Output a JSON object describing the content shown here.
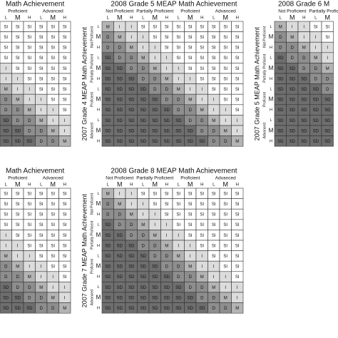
{
  "levels": [
    "L",
    "M",
    "H"
  ],
  "shades": {
    "SI": "#ffffff",
    "I": "#dcdcdc",
    "M": "#b4b4b4",
    "D": "#8e8e8e",
    "SD": "#6e6e6e"
  },
  "panels": [
    {
      "title": "Math Achievement",
      "col_groups": [
        "Proficient",
        "Advanced"
      ],
      "cells": [
        [
          "SI",
          "SI",
          "SI",
          "SI",
          "SI",
          "SI"
        ],
        [
          "SI",
          "SI",
          "SI",
          "SI",
          "SI",
          "SI"
        ],
        [
          "SI",
          "SI",
          "SI",
          "SI",
          "SI",
          "SI"
        ],
        [
          "SI",
          "SI",
          "SI",
          "SI",
          "SI",
          "SI"
        ],
        [
          "I",
          "SI",
          "SI",
          "SI",
          "SI",
          "SI"
        ],
        [
          "I",
          "I",
          "SI",
          "SI",
          "SI",
          "SI"
        ],
        [
          "M",
          "I",
          "I",
          "SI",
          "SI",
          "SI"
        ],
        [
          "D",
          "M",
          "I",
          "I",
          "SI",
          "SI"
        ],
        [
          "D",
          "D",
          "M",
          "I",
          "I",
          "SI"
        ],
        [
          "SD",
          "D",
          "D",
          "M",
          "I",
          "I"
        ],
        [
          "SD",
          "SD",
          "D",
          "D",
          "M",
          "I"
        ],
        [
          "SD",
          "SD",
          "SD",
          "D",
          "D",
          "M"
        ]
      ]
    },
    {
      "title": "2008 Grade 5 MEAP Math Achievement",
      "col_groups": [
        "Not Proficient",
        "Partially Proficient",
        "Proficient",
        "Advanced"
      ],
      "row_title": "2007 Grade 4 MEAP Math Achievement",
      "row_groups": [
        "Not Proficient",
        "Partially Proficient",
        "Proficient",
        "Advanced"
      ],
      "cells": [
        [
          "M",
          "I",
          "I",
          "SI",
          "SI",
          "SI",
          "SI",
          "SI",
          "SI",
          "SI",
          "SI",
          "SI"
        ],
        [
          "D",
          "M",
          "I",
          "I",
          "SI",
          "SI",
          "SI",
          "SI",
          "SI",
          "SI",
          "SI",
          "SI"
        ],
        [
          "D",
          "D",
          "M",
          "I",
          "I",
          "SI",
          "SI",
          "SI",
          "SI",
          "SI",
          "SI",
          "SI"
        ],
        [
          "SD",
          "D",
          "D",
          "M",
          "I",
          "I",
          "SI",
          "SI",
          "SI",
          "SI",
          "SI",
          "SI"
        ],
        [
          "SD",
          "SD",
          "D",
          "D",
          "M",
          "I",
          "I",
          "SI",
          "SI",
          "SI",
          "SI",
          "SI"
        ],
        [
          "SD",
          "SD",
          "SD",
          "D",
          "D",
          "M",
          "I",
          "I",
          "SI",
          "SI",
          "SI",
          "SI"
        ],
        [
          "SD",
          "SD",
          "SD",
          "SD",
          "D",
          "D",
          "M",
          "I",
          "I",
          "SI",
          "SI",
          "SI"
        ],
        [
          "SD",
          "SD",
          "SD",
          "SD",
          "SD",
          "D",
          "D",
          "M",
          "I",
          "I",
          "SI",
          "SI"
        ],
        [
          "SD",
          "SD",
          "SD",
          "SD",
          "SD",
          "SD",
          "D",
          "D",
          "M",
          "I",
          "I",
          "SI"
        ],
        [
          "SD",
          "SD",
          "SD",
          "SD",
          "SD",
          "SD",
          "SD",
          "D",
          "D",
          "M",
          "I",
          "I"
        ],
        [
          "SD",
          "SD",
          "SD",
          "SD",
          "SD",
          "SD",
          "SD",
          "SD",
          "D",
          "D",
          "M",
          "I"
        ],
        [
          "SD",
          "SD",
          "SD",
          "SD",
          "SD",
          "SD",
          "SD",
          "SD",
          "SD",
          "D",
          "D",
          "M"
        ]
      ]
    },
    {
      "title": "2008 Grade 6 M",
      "col_groups": [
        "Not Proficient",
        "Partially Proficient"
      ],
      "row_title": "2007 Grade 5 MEAP Math Achievement",
      "row_groups": [
        "Not Proficient",
        "Partially Proficient",
        "Proficient",
        "Advanced"
      ],
      "cells": [
        [
          "M",
          "I",
          "I",
          "SI",
          "SI"
        ],
        [
          "D",
          "M",
          "I",
          "I",
          "SI"
        ],
        [
          "D",
          "D",
          "M",
          "I",
          "I"
        ],
        [
          "SD",
          "D",
          "D",
          "M",
          "I"
        ],
        [
          "SD",
          "SD",
          "D",
          "D",
          "M"
        ],
        [
          "SD",
          "SD",
          "SD",
          "D",
          "D"
        ],
        [
          "SD",
          "SD",
          "SD",
          "SD",
          "D"
        ],
        [
          "SD",
          "SD",
          "SD",
          "SD",
          "SD"
        ],
        [
          "SD",
          "SD",
          "SD",
          "SD",
          "SD"
        ],
        [
          "SD",
          "SD",
          "SD",
          "SD",
          "SD"
        ],
        [
          "SD",
          "SD",
          "SD",
          "SD",
          "SD"
        ],
        [
          "SD",
          "SD",
          "SD",
          "SD",
          "SD"
        ]
      ]
    },
    {
      "title": "Math Achievement",
      "col_groups": [
        "Proficient",
        "Advanced"
      ],
      "cells": [
        [
          "SI",
          "SI",
          "SI",
          "SI",
          "SI",
          "SI"
        ],
        [
          "SI",
          "SI",
          "SI",
          "SI",
          "SI",
          "SI"
        ],
        [
          "SI",
          "SI",
          "SI",
          "SI",
          "SI",
          "SI"
        ],
        [
          "SI",
          "SI",
          "SI",
          "SI",
          "SI",
          "SI"
        ],
        [
          "I",
          "SI",
          "SI",
          "SI",
          "SI",
          "SI"
        ],
        [
          "I",
          "I",
          "SI",
          "SI",
          "SI",
          "SI"
        ],
        [
          "M",
          "I",
          "I",
          "SI",
          "SI",
          "SI"
        ],
        [
          "D",
          "M",
          "I",
          "I",
          "SI",
          "SI"
        ],
        [
          "D",
          "D",
          "M",
          "I",
          "I",
          "SI"
        ],
        [
          "SD",
          "D",
          "D",
          "M",
          "I",
          "I"
        ],
        [
          "SD",
          "SD",
          "D",
          "D",
          "M",
          "I"
        ],
        [
          "SD",
          "SD",
          "SD",
          "D",
          "D",
          "M"
        ]
      ]
    },
    {
      "title": "2008 Grade 8 MEAP Math Achievement",
      "col_groups": [
        "Not Proficient",
        "Partially Proficient",
        "Proficient",
        "Advanced"
      ],
      "row_title": "2007 Grade 7 MEAP Math Achievement",
      "row_groups": [
        "Not Proficient",
        "Partially Proficient",
        "Proficient",
        "Advanced"
      ],
      "cells": [
        [
          "M",
          "I",
          "I",
          "SI",
          "SI",
          "SI",
          "SI",
          "SI",
          "SI",
          "SI",
          "SI",
          "SI"
        ],
        [
          "D",
          "M",
          "I",
          "I",
          "SI",
          "SI",
          "SI",
          "SI",
          "SI",
          "SI",
          "SI",
          "SI"
        ],
        [
          "D",
          "D",
          "M",
          "I",
          "I",
          "SI",
          "SI",
          "SI",
          "SI",
          "SI",
          "SI",
          "SI"
        ],
        [
          "SD",
          "D",
          "D",
          "M",
          "I",
          "I",
          "SI",
          "SI",
          "SI",
          "SI",
          "SI",
          "SI"
        ],
        [
          "SD",
          "SD",
          "D",
          "D",
          "M",
          "I",
          "I",
          "SI",
          "SI",
          "SI",
          "SI",
          "SI"
        ],
        [
          "SD",
          "SD",
          "SD",
          "D",
          "D",
          "M",
          "I",
          "I",
          "SI",
          "SI",
          "SI",
          "SI"
        ],
        [
          "SD",
          "SD",
          "SD",
          "SD",
          "D",
          "D",
          "M",
          "I",
          "I",
          "SI",
          "SI",
          "SI"
        ],
        [
          "SD",
          "SD",
          "SD",
          "SD",
          "SD",
          "D",
          "D",
          "M",
          "I",
          "I",
          "SI",
          "SI"
        ],
        [
          "SD",
          "SD",
          "SD",
          "SD",
          "SD",
          "SD",
          "D",
          "D",
          "M",
          "I",
          "I",
          "SI"
        ],
        [
          "SD",
          "SD",
          "SD",
          "SD",
          "SD",
          "SD",
          "SD",
          "D",
          "D",
          "M",
          "I",
          "I"
        ],
        [
          "SD",
          "SD",
          "SD",
          "SD",
          "SD",
          "SD",
          "SD",
          "SD",
          "D",
          "D",
          "M",
          "I"
        ],
        [
          "SD",
          "SD",
          "SD",
          "SD",
          "SD",
          "SD",
          "SD",
          "SD",
          "SD",
          "D",
          "D",
          "M"
        ]
      ]
    }
  ]
}
